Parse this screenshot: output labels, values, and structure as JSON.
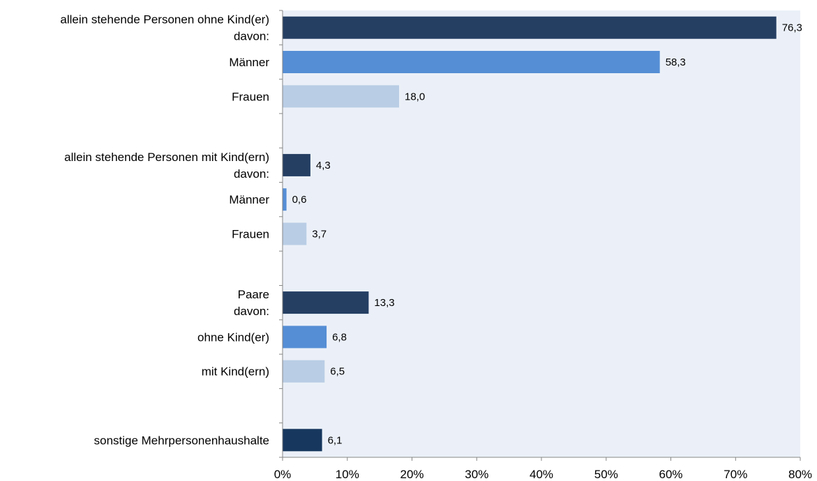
{
  "chart_data": {
    "type": "bar",
    "orientation": "horizontal",
    "title": "",
    "xlabel": "",
    "ylabel": "",
    "xlim": [
      0,
      80
    ],
    "x_tick_labels": [
      "0%",
      "10%",
      "20%",
      "30%",
      "40%",
      "50%",
      "60%",
      "70%",
      "80%"
    ],
    "x_ticks": [
      0,
      10,
      20,
      30,
      40,
      50,
      60,
      70,
      80
    ],
    "grid": false,
    "legend": false,
    "background_color": "#EBF0F8",
    "categories": [
      {
        "label_lines": [
          "allein stehende Personen ohne Kind(er)",
          "davon:"
        ],
        "value": 76.3,
        "value_label": "76,3",
        "color": "#253F63"
      },
      {
        "label_lines": [
          "Männer"
        ],
        "value": 58.3,
        "value_label": "58,3",
        "color": "#558ED5"
      },
      {
        "label_lines": [
          "Frauen"
        ],
        "value": 18.0,
        "value_label": "18,0",
        "color": "#B9CDE5"
      },
      {
        "label_lines": [],
        "value": null,
        "value_label": "",
        "color": ""
      },
      {
        "label_lines": [
          "allein stehende Personen mit Kind(ern)",
          "davon:"
        ],
        "value": 4.3,
        "value_label": "4,3",
        "color": "#253F63"
      },
      {
        "label_lines": [
          "Männer"
        ],
        "value": 0.6,
        "value_label": "0,6",
        "color": "#558ED5"
      },
      {
        "label_lines": [
          "Frauen"
        ],
        "value": 3.7,
        "value_label": "3,7",
        "color": "#B9CDE5"
      },
      {
        "label_lines": [],
        "value": null,
        "value_label": "",
        "color": ""
      },
      {
        "label_lines": [
          "Paare",
          "davon:"
        ],
        "value": 13.3,
        "value_label": "13,3",
        "color": "#253F63"
      },
      {
        "label_lines": [
          "ohne Kind(er)"
        ],
        "value": 6.8,
        "value_label": "6,8",
        "color": "#558ED5"
      },
      {
        "label_lines": [
          "mit Kind(ern)"
        ],
        "value": 6.5,
        "value_label": "6,5",
        "color": "#B9CDE5"
      },
      {
        "label_lines": [],
        "value": null,
        "value_label": "",
        "color": ""
      },
      {
        "label_lines": [
          "sonstige Mehrpersonenhaushalte"
        ],
        "value": 6.1,
        "value_label": "6,1",
        "color": "#17375E"
      }
    ]
  }
}
